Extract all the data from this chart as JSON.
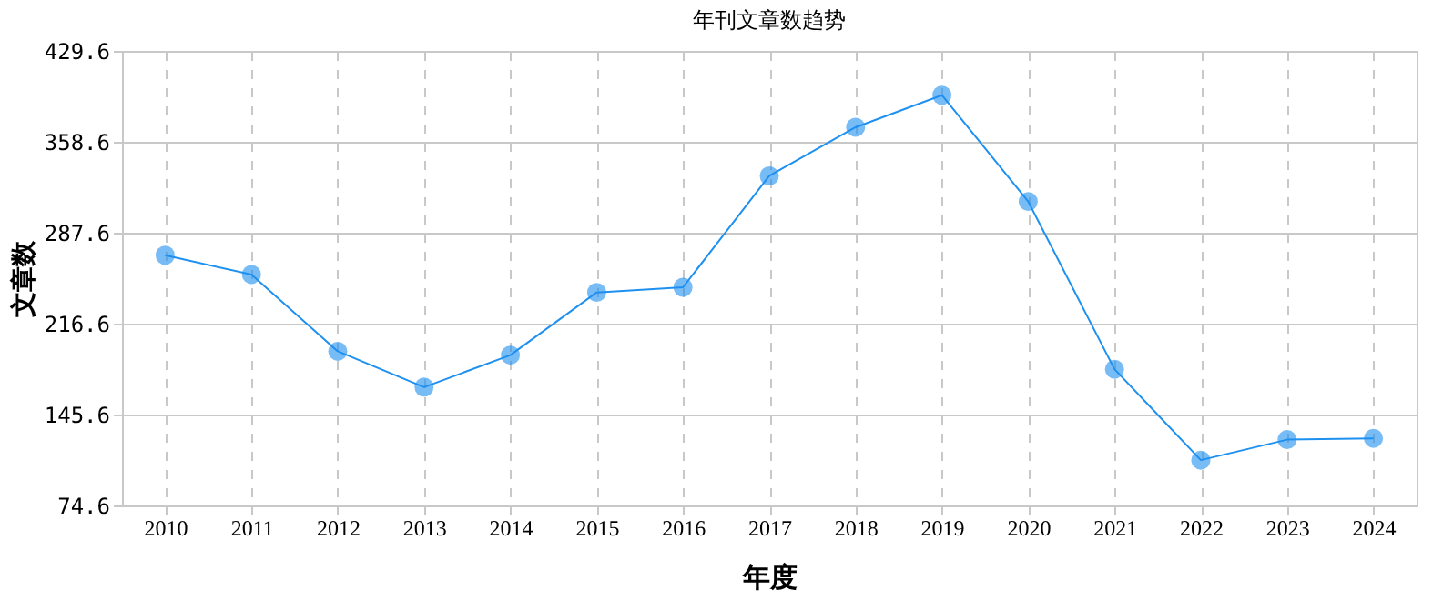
{
  "chart_data": {
    "type": "line",
    "title": "年刊文章数趋势",
    "xlabel": "年度",
    "ylabel": "文章数",
    "categories": [
      "2010",
      "2011",
      "2012",
      "2013",
      "2014",
      "2015",
      "2016",
      "2017",
      "2018",
      "2019",
      "2020",
      "2021",
      "2022",
      "2023",
      "2024"
    ],
    "series": [
      {
        "color": "#1e90f0",
        "values": [
          270,
          255,
          195,
          167,
          192,
          241,
          245,
          332,
          370,
          395,
          312,
          181,
          110,
          126,
          127
        ]
      }
    ],
    "ylim": [
      74.6,
      429.6
    ],
    "yticks": [
      74.6,
      145.6,
      216.6,
      287.6,
      358.6,
      429.6
    ],
    "grid": true,
    "legend": false,
    "marker": "circle",
    "line_style": "solid"
  }
}
